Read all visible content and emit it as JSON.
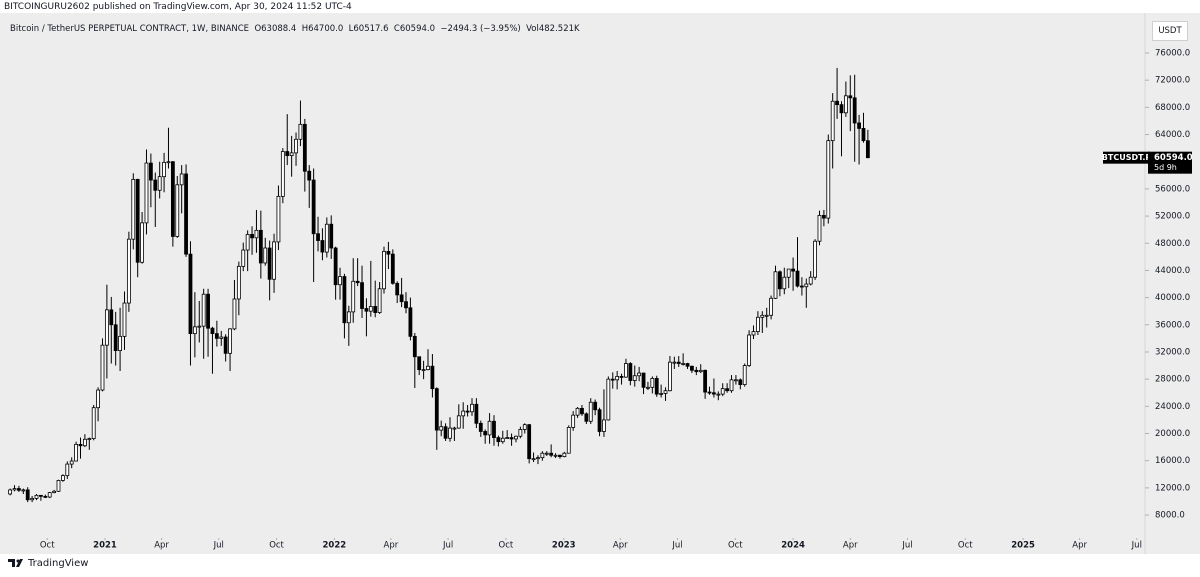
{
  "header": {
    "publisher": "BITCOINGURU2602 published on TradingView.com, Apr 30, 2024 11:52 UTC-4",
    "symbol": "Bitcoin / TetherUS PERPETUAL CONTRACT, 1W, BINANCE",
    "ohlc": "O63088.4  H64700.0  L60517.6  C60594.0  −2494.3 (−3.95%)  Vol482.521K"
  },
  "chart_data": {
    "type": "candlestick",
    "up_color": "#ffffff",
    "down_color": "#000000",
    "outline_color": "#000000",
    "currency": "USDT",
    "last_price_label": "BTCUSDT.P",
    "last_price": {
      "value": 60594,
      "label": "60594.0"
    },
    "countdown": "5d 9h",
    "xlim": [
      -2.3,
      258
    ],
    "ylim": [
      5800,
      81150
    ],
    "xticks": [
      {
        "value": 8.43,
        "label": "Oct"
      },
      {
        "value": 21.57,
        "label": "2021"
      },
      {
        "value": 34.43,
        "label": "Apr"
      },
      {
        "value": 47.43,
        "label": "Jul"
      },
      {
        "value": 60.57,
        "label": "Oct"
      },
      {
        "value": 73.71,
        "label": "2022"
      },
      {
        "value": 86.57,
        "label": "Apr"
      },
      {
        "value": 99.57,
        "label": "Jul"
      },
      {
        "value": 112.71,
        "label": "Oct"
      },
      {
        "value": 125.86,
        "label": "2023"
      },
      {
        "value": 138.71,
        "label": "Apr"
      },
      {
        "value": 151.71,
        "label": "Jul"
      },
      {
        "value": 164.86,
        "label": "Oct"
      },
      {
        "value": 178,
        "label": "2024"
      },
      {
        "value": 191,
        "label": "Apr"
      },
      {
        "value": 204,
        "label": "Jul"
      },
      {
        "value": 217.14,
        "label": "Oct"
      },
      {
        "value": 230.29,
        "label": "2025"
      },
      {
        "value": 243.14,
        "label": "Apr"
      },
      {
        "value": 256.14,
        "label": "Jul"
      }
    ],
    "yticks": [
      {
        "value": 8000,
        "label": "8000.0"
      },
      {
        "value": 12000,
        "label": "12000.0"
      },
      {
        "value": 16000,
        "label": "16000.0"
      },
      {
        "value": 20000,
        "label": "20000.0"
      },
      {
        "value": 24000,
        "label": "24000.0"
      },
      {
        "value": 28000,
        "label": "28000.0"
      },
      {
        "value": 32000,
        "label": "32000.0"
      },
      {
        "value": 36000,
        "label": "36000.0"
      },
      {
        "value": 40000,
        "label": "40000.0"
      },
      {
        "value": 44000,
        "label": "44000.0"
      },
      {
        "value": 48000,
        "label": "48000.0"
      },
      {
        "value": 52000,
        "label": "52000.0"
      },
      {
        "value": 56000,
        "label": "56000.0"
      },
      {
        "value": 60000,
        "label": "60000.0"
      },
      {
        "value": 64000,
        "label": "64000.0"
      },
      {
        "value": 68000,
        "label": "68000.0"
      },
      {
        "value": 72000,
        "label": "72000.0"
      },
      {
        "value": 76000,
        "label": "76000.0"
      }
    ],
    "candles": [
      [
        11100,
        11900,
        10900,
        11700
      ],
      [
        11700,
        12400,
        11500,
        11900
      ],
      [
        11900,
        12300,
        11400,
        11650
      ],
      [
        11650,
        11900,
        11100,
        11700
      ],
      [
        11700,
        12100,
        9900,
        10250
      ],
      [
        10250,
        10800,
        9900,
        10450
      ],
      [
        10450,
        11100,
        10200,
        10900
      ],
      [
        10900,
        10950,
        10100,
        10750
      ],
      [
        10750,
        11000,
        10500,
        10650
      ],
      [
        10650,
        11400,
        10500,
        11300
      ],
      [
        11300,
        11700,
        11200,
        11500
      ],
      [
        11500,
        13200,
        11400,
        13100
      ],
      [
        13100,
        14000,
        12900,
        13800
      ],
      [
        13800,
        15900,
        13300,
        15500
      ],
      [
        15500,
        16500,
        14900,
        15950
      ],
      [
        15950,
        18800,
        15900,
        18400
      ],
      [
        18400,
        19400,
        16300,
        18200
      ],
      [
        18200,
        19900,
        18000,
        19150
      ],
      [
        19150,
        19400,
        17600,
        19250
      ],
      [
        19250,
        24200,
        19000,
        23800
      ],
      [
        23800,
        26800,
        21800,
        26400
      ],
      [
        26400,
        34000,
        26200,
        33000
      ],
      [
        33000,
        41900,
        28100,
        38200
      ],
      [
        38200,
        40100,
        30300,
        36000
      ],
      [
        36000,
        37900,
        30000,
        32200
      ],
      [
        32200,
        38500,
        29200,
        34300
      ],
      [
        34300,
        40900,
        32300,
        39200
      ],
      [
        39200,
        49700,
        37900,
        48600
      ],
      [
        48600,
        58300,
        47100,
        57400
      ],
      [
        57400,
        57500,
        43000,
        45200
      ],
      [
        45200,
        52600,
        45000,
        51000
      ],
      [
        51000,
        61800,
        49300,
        59800
      ],
      [
        59800,
        61200,
        53300,
        57300
      ],
      [
        57300,
        58400,
        50400,
        55800
      ],
      [
        55800,
        60000,
        54600,
        57800
      ],
      [
        57800,
        61300,
        55500,
        59900
      ],
      [
        59900,
        65000,
        59000,
        60000
      ],
      [
        60000,
        60100,
        47500,
        49000
      ],
      [
        49000,
        57900,
        48800,
        56600
      ],
      [
        56600,
        59500,
        52400,
        58200
      ],
      [
        58200,
        59600,
        46000,
        46400
      ],
      [
        46400,
        48300,
        30000,
        34700
      ],
      [
        34700,
        40800,
        31200,
        35700
      ],
      [
        35700,
        39500,
        33400,
        35800
      ],
      [
        35800,
        41300,
        31000,
        40500
      ],
      [
        40500,
        41300,
        31300,
        35500
      ],
      [
        35500,
        35700,
        28800,
        34700
      ],
      [
        34700,
        36600,
        32800,
        34000
      ],
      [
        34000,
        35100,
        32900,
        34200
      ],
      [
        34200,
        34600,
        30600,
        31800
      ],
      [
        31800,
        35500,
        29200,
        35400
      ],
      [
        35400,
        42600,
        35200,
        39800
      ],
      [
        39800,
        45300,
        37400,
        44600
      ],
      [
        44600,
        48100,
        43900,
        47000
      ],
      [
        47000,
        49900,
        43900,
        49300
      ],
      [
        49300,
        50500,
        46300,
        48800
      ],
      [
        48800,
        52900,
        46600,
        49900
      ],
      [
        49900,
        52800,
        42800,
        45100
      ],
      [
        45100,
        48800,
        44700,
        47300
      ],
      [
        47300,
        48400,
        39600,
        42700
      ],
      [
        42700,
        49400,
        40700,
        48200
      ],
      [
        48200,
        56500,
        47000,
        54900
      ],
      [
        54900,
        62000,
        53900,
        61500
      ],
      [
        61500,
        67000,
        59500,
        60900
      ],
      [
        60900,
        63800,
        57800,
        61300
      ],
      [
        61300,
        64300,
        59400,
        63300
      ],
      [
        63300,
        69000,
        62300,
        65500
      ],
      [
        65500,
        66300,
        55600,
        58600
      ],
      [
        58600,
        59500,
        53200,
        57300
      ],
      [
        57300,
        59000,
        42300,
        49400
      ],
      [
        49400,
        51900,
        46800,
        48400
      ],
      [
        48400,
        50200,
        45500,
        46700
      ],
      [
        46700,
        51800,
        45900,
        50800
      ],
      [
        50800,
        52100,
        45700,
        47300
      ],
      [
        47300,
        47500,
        39700,
        41900
      ],
      [
        41900,
        44400,
        39700,
        43100
      ],
      [
        43100,
        43500,
        34000,
        36300
      ],
      [
        36300,
        38800,
        32900,
        37900
      ],
      [
        37900,
        45800,
        36300,
        42400
      ],
      [
        42400,
        45800,
        41700,
        42200
      ],
      [
        42200,
        44700,
        37000,
        38400
      ],
      [
        38400,
        39900,
        34300,
        38000
      ],
      [
        38000,
        45400,
        37200,
        38700
      ],
      [
        38700,
        42500,
        37100,
        37800
      ],
      [
        37800,
        42300,
        37600,
        41300
      ],
      [
        41300,
        47500,
        40600,
        46800
      ],
      [
        46800,
        48200,
        44200,
        46400
      ],
      [
        46400,
        47100,
        41900,
        42100
      ],
      [
        42100,
        42400,
        39200,
        40400
      ],
      [
        40400,
        42900,
        38600,
        39400
      ],
      [
        39400,
        40800,
        37700,
        38500
      ],
      [
        38500,
        40000,
        33700,
        34300
      ],
      [
        34300,
        34800,
        26700,
        31300
      ],
      [
        31300,
        31300,
        28600,
        29400
      ],
      [
        29400,
        30700,
        28000,
        29400
      ],
      [
        29400,
        32400,
        29300,
        29900
      ],
      [
        29900,
        31700,
        25300,
        26600
      ],
      [
        26600,
        26800,
        17600,
        20500
      ],
      [
        20500,
        21900,
        19600,
        21000
      ],
      [
        21000,
        21500,
        18900,
        19300
      ],
      [
        19300,
        22400,
        18800,
        20800
      ],
      [
        20800,
        21000,
        18900,
        20800
      ],
      [
        20800,
        24300,
        20700,
        22600
      ],
      [
        22600,
        24600,
        20700,
        23300
      ],
      [
        23300,
        24200,
        22500,
        23200
      ],
      [
        23200,
        25200,
        22600,
        24300
      ],
      [
        24300,
        25200,
        20800,
        21500
      ],
      [
        21500,
        21900,
        19500,
        20300
      ],
      [
        20300,
        20600,
        18500,
        19800
      ],
      [
        19800,
        23000,
        18500,
        21800
      ],
      [
        21800,
        22700,
        18200,
        19400
      ],
      [
        19400,
        19700,
        18100,
        18800
      ],
      [
        18800,
        20400,
        18500,
        19300
      ],
      [
        19300,
        20500,
        19200,
        19400
      ],
      [
        19400,
        20000,
        18200,
        19200
      ],
      [
        19200,
        19700,
        18700,
        19600
      ],
      [
        19600,
        21000,
        19300,
        20600
      ],
      [
        20600,
        21500,
        20000,
        21300
      ],
      [
        21300,
        21400,
        15600,
        16300
      ],
      [
        16300,
        17200,
        15800,
        16300
      ],
      [
        16300,
        16800,
        15500,
        16450
      ],
      [
        16450,
        17400,
        16000,
        17100
      ],
      [
        17100,
        17400,
        16700,
        17100
      ],
      [
        17100,
        18400,
        16500,
        16800
      ],
      [
        16800,
        17100,
        16400,
        16800
      ],
      [
        16800,
        16900,
        16300,
        16600
      ],
      [
        16600,
        17300,
        16500,
        17100
      ],
      [
        17100,
        21200,
        17100,
        20900
      ],
      [
        20900,
        23300,
        20400,
        22700
      ],
      [
        22700,
        23900,
        22300,
        23700
      ],
      [
        23700,
        24200,
        22600,
        22900
      ],
      [
        22900,
        23100,
        21400,
        21800
      ],
      [
        21800,
        25200,
        21400,
        24600
      ],
      [
        24600,
        25000,
        22700,
        23500
      ],
      [
        23500,
        23800,
        19600,
        20300
      ],
      [
        20300,
        26500,
        19500,
        22000
      ],
      [
        22000,
        28400,
        21900,
        28000
      ],
      [
        28000,
        29000,
        26600,
        27900
      ],
      [
        27900,
        29200,
        26500,
        28400
      ],
      [
        28400,
        28800,
        27200,
        28300
      ],
      [
        28300,
        31000,
        28200,
        30300
      ],
      [
        30300,
        30500,
        27100,
        27800
      ],
      [
        27800,
        30000,
        26900,
        28500
      ],
      [
        28500,
        29800,
        27700,
        28900
      ],
      [
        28900,
        28900,
        25800,
        26800
      ],
      [
        26800,
        27600,
        26400,
        26800
      ],
      [
        26800,
        28400,
        25900,
        28100
      ],
      [
        28100,
        28500,
        25400,
        25800
      ],
      [
        25800,
        27200,
        25300,
        25900
      ],
      [
        25900,
        26800,
        24800,
        26300
      ],
      [
        26300,
        31400,
        26200,
        30500
      ],
      [
        30500,
        31300,
        29500,
        30500
      ],
      [
        30500,
        31400,
        29800,
        30300
      ],
      [
        30300,
        31800,
        30000,
        30300
      ],
      [
        30300,
        30400,
        29500,
        29900
      ],
      [
        29900,
        30000,
        28900,
        29300
      ],
      [
        29300,
        29800,
        28600,
        29100
      ],
      [
        29100,
        30200,
        28900,
        29300
      ],
      [
        29300,
        29400,
        25100,
        26100
      ],
      [
        26100,
        26900,
        25700,
        26000
      ],
      [
        26000,
        28100,
        25300,
        25800
      ],
      [
        25800,
        26200,
        24900,
        25800
      ],
      [
        25800,
        27400,
        25500,
        26600
      ],
      [
        26600,
        27400,
        26000,
        26300
      ],
      [
        26300,
        28600,
        26000,
        27900
      ],
      [
        27900,
        28600,
        27200,
        27900
      ],
      [
        27900,
        28100,
        26500,
        27200
      ],
      [
        27200,
        30300,
        26900,
        30000
      ],
      [
        30000,
        35200,
        29800,
        34500
      ],
      [
        34500,
        35900,
        33900,
        35000
      ],
      [
        35000,
        38000,
        34500,
        37100
      ],
      [
        37100,
        38000,
        34800,
        37400
      ],
      [
        37400,
        38500,
        35600,
        37400
      ],
      [
        37400,
        40300,
        36800,
        39900
      ],
      [
        39900,
        44700,
        39800,
        43800
      ],
      [
        43800,
        44000,
        40200,
        41300
      ],
      [
        41300,
        44400,
        40500,
        43000
      ],
      [
        43000,
        44000,
        41400,
        44200
      ],
      [
        44200,
        45900,
        41000,
        43900
      ],
      [
        43900,
        48900,
        41500,
        41700
      ],
      [
        41700,
        43000,
        40300,
        41600
      ],
      [
        41600,
        42800,
        38500,
        42000
      ],
      [
        42000,
        43900,
        41800,
        43000
      ],
      [
        43000,
        48600,
        42600,
        48300
      ],
      [
        48300,
        52800,
        47700,
        52100
      ],
      [
        52100,
        52900,
        50500,
        51700
      ],
      [
        51700,
        64000,
        50900,
        63100
      ],
      [
        63100,
        70100,
        59000,
        68900
      ],
      [
        68900,
        73800,
        66300,
        68400
      ],
      [
        68400,
        68900,
        60800,
        67200
      ],
      [
        67200,
        71800,
        66600,
        69700
      ],
      [
        69700,
        72700,
        64500,
        69400
      ],
      [
        69400,
        72800,
        60000,
        65700
      ],
      [
        65700,
        66900,
        59600,
        64900
      ],
      [
        64900,
        67200,
        62800,
        63100
      ],
      [
        63088.4,
        64700,
        60517.6,
        60594
      ]
    ]
  },
  "footer": {
    "brand": "TradingView"
  }
}
